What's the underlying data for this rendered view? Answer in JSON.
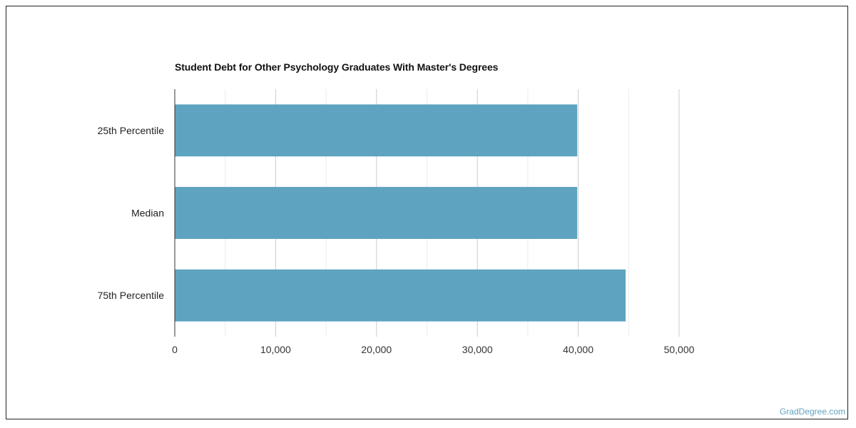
{
  "chart_data": {
    "type": "bar",
    "orientation": "horizontal",
    "title": "Student Debt for Other Psychology Graduates With Master's Degrees",
    "categories": [
      "25th Percentile",
      "Median",
      "75th Percentile"
    ],
    "values": [
      39900,
      39900,
      44700
    ],
    "xlim": [
      0,
      50000
    ],
    "xticks": [
      0,
      10000,
      20000,
      30000,
      40000,
      50000
    ],
    "xtick_labels": [
      "0",
      "10,000",
      "20,000",
      "30,000",
      "40,000",
      "50,000"
    ],
    "grid": true,
    "bar_color": "#5ea3c0"
  },
  "watermark": "GradDegree.com"
}
